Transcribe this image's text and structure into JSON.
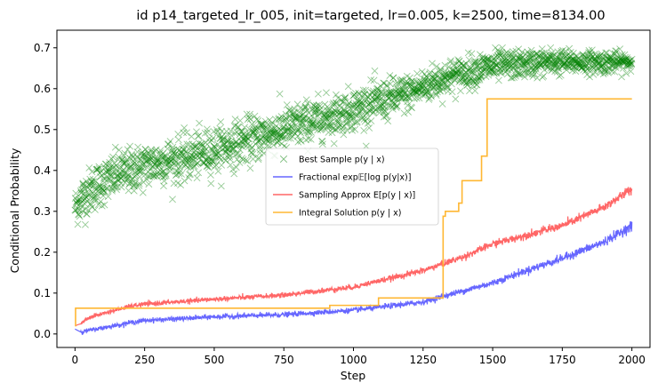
{
  "chart_data": {
    "type": "line",
    "title": "id p14_targeted_lr_005, init=targeted, lr=0.005, k=2500, time=8134.00",
    "xlabel": "Step",
    "ylabel": "Conditional Probability",
    "xlim": [
      -65,
      2065
    ],
    "ylim": [
      -0.033,
      0.743
    ],
    "xticks": [
      0,
      250,
      500,
      750,
      1000,
      1250,
      1500,
      1750,
      2000
    ],
    "xtick_labels": [
      "0",
      "250",
      "500",
      "750",
      "1000",
      "1250",
      "1500",
      "1750",
      "2000"
    ],
    "yticks": [
      0.0,
      0.1,
      0.2,
      0.3,
      0.4,
      0.5,
      0.6,
      0.7
    ],
    "ytick_labels": [
      "0.0",
      "0.1",
      "0.2",
      "0.3",
      "0.4",
      "0.5",
      "0.6",
      "0.7"
    ],
    "grid": false,
    "legend_position": "center-right",
    "legend": [
      {
        "label": "Best Sample p(y | x)",
        "marker": "x",
        "color": "#008000"
      },
      {
        "label": "Fractional exp𝔼[log p(y|x)]",
        "marker": "line",
        "color": "#6666ff"
      },
      {
        "label": "Sampling Approx E[p(y | x)]",
        "marker": "line",
        "color": "#ff6666"
      },
      {
        "label": "Integral Solution p(y | x)",
        "marker": "line",
        "color": "#ffb733"
      }
    ],
    "series": [
      {
        "name": "Best Sample p(y | x)",
        "style": "scatter-x",
        "color": "#008000",
        "x": [
          0,
          25,
          50,
          100,
          150,
          200,
          250,
          300,
          400,
          500,
          600,
          700,
          800,
          900,
          1000,
          1100,
          1200,
          1300,
          1400,
          1500,
          1600,
          1700,
          1800,
          1900,
          2000
        ],
        "y": [
          0.31,
          0.33,
          0.35,
          0.37,
          0.39,
          0.4,
          0.41,
          0.42,
          0.43,
          0.45,
          0.47,
          0.49,
          0.51,
          0.53,
          0.55,
          0.57,
          0.59,
          0.62,
          0.64,
          0.655,
          0.66,
          0.665,
          0.665,
          0.665,
          0.665
        ],
        "spread": [
          0.04,
          0.05,
          0.05,
          0.05,
          0.05,
          0.05,
          0.05,
          0.05,
          0.05,
          0.05,
          0.05,
          0.05,
          0.05,
          0.045,
          0.045,
          0.045,
          0.04,
          0.04,
          0.035,
          0.035,
          0.03,
          0.03,
          0.025,
          0.025,
          0.02
        ],
        "count": 2000
      },
      {
        "name": "Fractional exp𝔼[log p(y|x)]",
        "style": "line",
        "color": "#6666ff",
        "x": [
          0,
          20,
          100,
          200,
          250,
          400,
          500,
          750,
          1000,
          1250,
          1300,
          1500,
          1600,
          1750,
          1900,
          2000
        ],
        "y": [
          0.012,
          0.005,
          0.015,
          0.028,
          0.033,
          0.038,
          0.042,
          0.047,
          0.058,
          0.078,
          0.088,
          0.125,
          0.15,
          0.185,
          0.225,
          0.265
        ],
        "noise": 0.006
      },
      {
        "name": "Sampling Approx E[p(y | x)]",
        "style": "line",
        "color": "#ff6666",
        "x": [
          0,
          20,
          50,
          100,
          200,
          250,
          400,
          500,
          750,
          1000,
          1250,
          1400,
          1500,
          1750,
          1900,
          2000
        ],
        "y": [
          0.02,
          0.025,
          0.04,
          0.05,
          0.068,
          0.073,
          0.08,
          0.085,
          0.095,
          0.115,
          0.155,
          0.19,
          0.22,
          0.265,
          0.31,
          0.355
        ],
        "noise": 0.005
      },
      {
        "name": "Integral Solution p(y | x)",
        "style": "step",
        "color": "#ffb733",
        "x": [
          0,
          2,
          915,
          1090,
          1322,
          1330,
          1378,
          1390,
          1460,
          1480,
          2000
        ],
        "y": [
          0.02,
          0.063,
          0.07,
          0.088,
          0.288,
          0.3,
          0.32,
          0.375,
          0.435,
          0.575,
          0.575
        ]
      }
    ]
  }
}
